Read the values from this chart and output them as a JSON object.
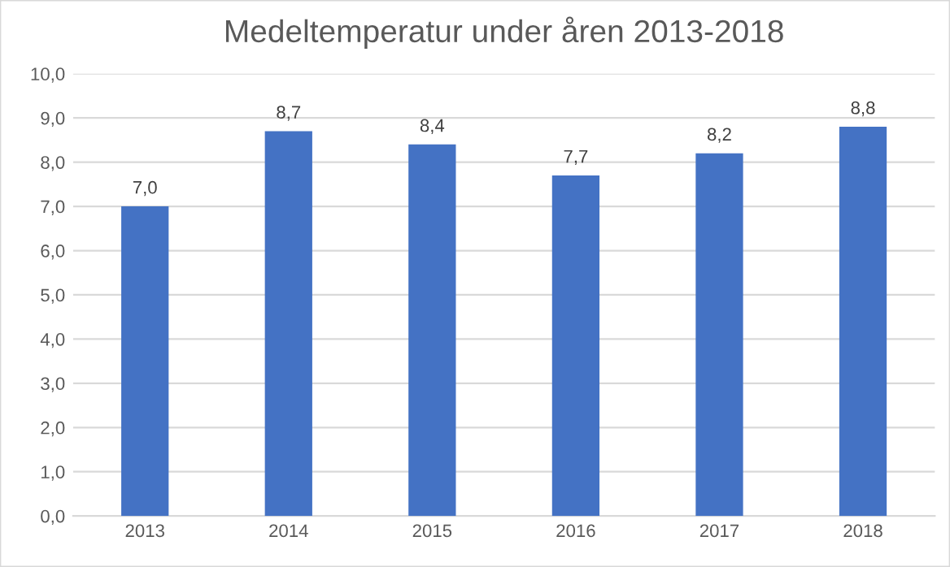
{
  "chart_data": {
    "type": "bar",
    "title": "Medeltemperatur under åren 2013-2018",
    "categories": [
      "2013",
      "2014",
      "2015",
      "2016",
      "2017",
      "2018"
    ],
    "values": [
      7.0,
      8.7,
      8.4,
      7.7,
      8.2,
      8.8
    ],
    "value_labels": [
      "7,0",
      "8,7",
      "8,4",
      "7,7",
      "8,2",
      "8,8"
    ],
    "color": "#4472c4",
    "ylim": [
      0,
      10
    ],
    "yticks": [
      {
        "value": 0,
        "label": "0,0"
      },
      {
        "value": 1,
        "label": "1,0"
      },
      {
        "value": 2,
        "label": "2,0"
      },
      {
        "value": 3,
        "label": "3,0"
      },
      {
        "value": 4,
        "label": "4,0"
      },
      {
        "value": 5,
        "label": "5,0"
      },
      {
        "value": 6,
        "label": "6,0"
      },
      {
        "value": 7,
        "label": "7,0"
      },
      {
        "value": 8,
        "label": "8,0"
      },
      {
        "value": 9,
        "label": "9,0"
      },
      {
        "value": 10,
        "label": "10,0"
      }
    ],
    "grid": "y"
  }
}
